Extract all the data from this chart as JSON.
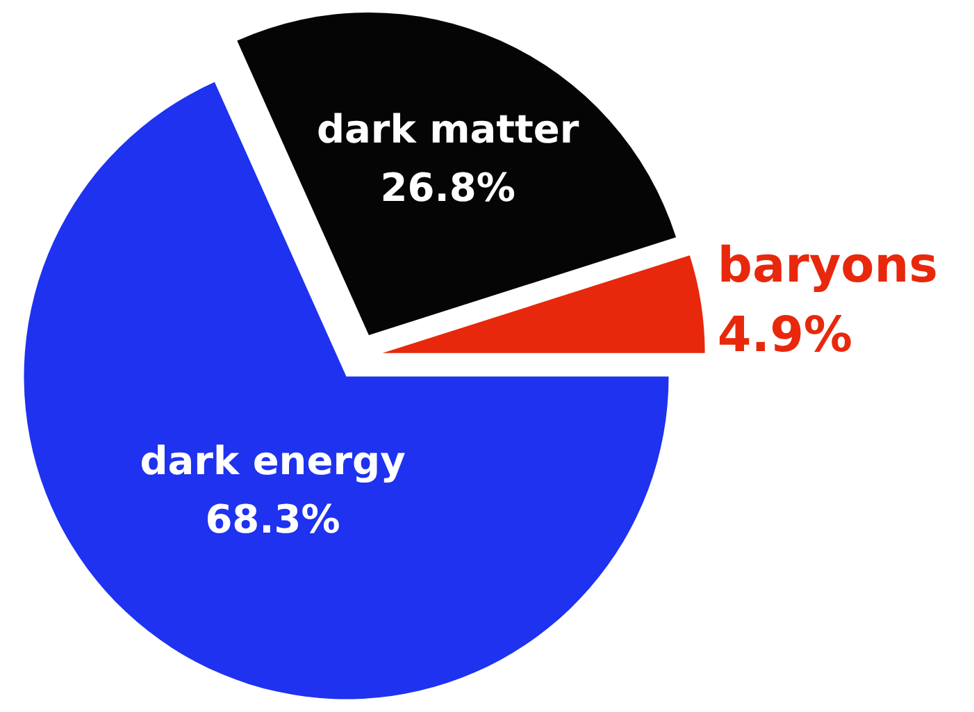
{
  "chart_data": {
    "type": "pie",
    "categories": [
      "dark energy",
      "dark matter",
      "baryons"
    ],
    "values": [
      68.3,
      26.8,
      4.9
    ],
    "colors": [
      "#1e32f0",
      "#050505",
      "#e8280c"
    ],
    "value_labels": [
      "68.3%",
      "26.8%",
      "4.9%"
    ]
  }
}
